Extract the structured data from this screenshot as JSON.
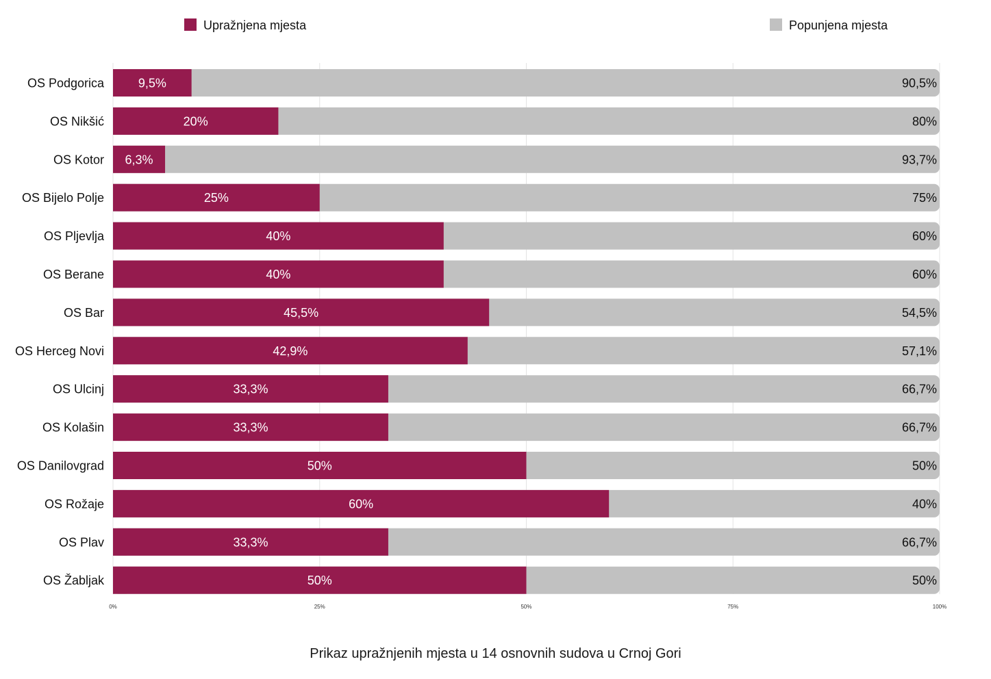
{
  "chart_data": {
    "type": "bar",
    "orientation": "horizontal",
    "stacked": true,
    "normalized": true,
    "title": "",
    "caption": "Prikaz upražnjenih mjesta u 14 osnovnih sudova u Crnoj Gori",
    "categories": [
      "OS Podgorica",
      "OS Nikšić",
      "OS Kotor",
      "OS Bijelo Polje",
      "OS Pljevlja",
      "OS Berane",
      "OS Bar",
      "OS Herceg Novi",
      "OS Ulcinj",
      "OS Kolašin",
      "OS Danilovgrad",
      "OS Rožaje",
      "OS Plav",
      "OS Žabljak"
    ],
    "series": [
      {
        "name": "Upražnjena mjesta",
        "color": "#951b4e",
        "values": [
          9.5,
          20,
          6.3,
          25,
          40,
          40,
          45.5,
          42.9,
          33.3,
          33.3,
          50,
          60,
          33.3,
          50
        ],
        "labels": [
          "9,5%",
          "20%",
          "6,3%",
          "25%",
          "40%",
          "40%",
          "45,5%",
          "42,9%",
          "33,3%",
          "33,3%",
          "50%",
          "60%",
          "33,3%",
          "50%"
        ]
      },
      {
        "name": "Popunjena mjesta",
        "color": "#c1c1c1",
        "values": [
          90.5,
          80,
          93.7,
          75,
          60,
          60,
          54.5,
          57.1,
          66.7,
          66.7,
          50,
          40,
          66.7,
          50
        ],
        "labels": [
          "90,5%",
          "80%",
          "93,7%",
          "75%",
          "60%",
          "60%",
          "54,5%",
          "57,1%",
          "66,7%",
          "66,7%",
          "50%",
          "40%",
          "66,7%",
          "50%"
        ]
      }
    ],
    "xlim": [
      0,
      100
    ],
    "xticks": [
      0,
      25,
      50,
      75,
      100
    ],
    "xtick_labels": [
      "0%",
      "25%",
      "50%",
      "75%",
      "100%"
    ],
    "grid": true,
    "legend_position": "top"
  }
}
